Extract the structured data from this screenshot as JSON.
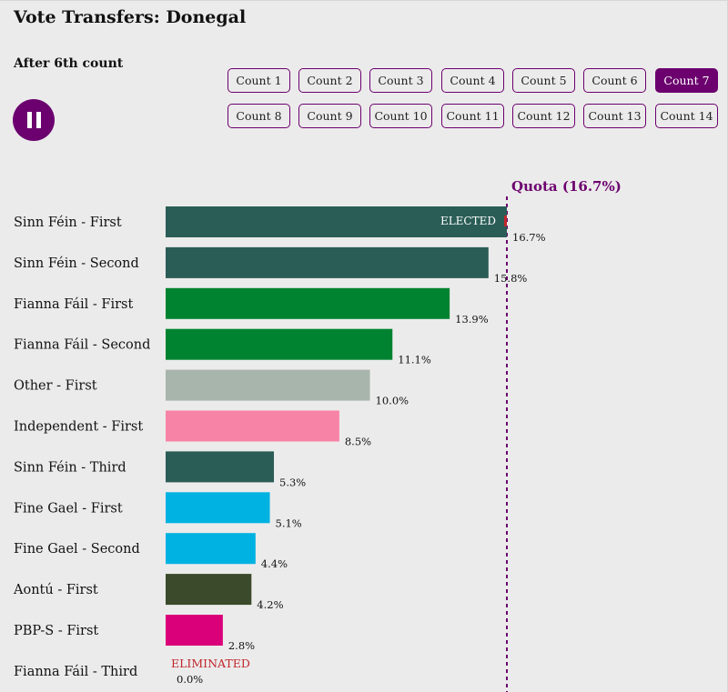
{
  "header": {
    "title": "Vote Transfers: Donegal",
    "subtitle": "After 6th count"
  },
  "controls": {
    "play_state": "paused",
    "counts": [
      {
        "label": "Count 1",
        "active": false
      },
      {
        "label": "Count 2",
        "active": false
      },
      {
        "label": "Count 3",
        "active": false
      },
      {
        "label": "Count 4",
        "active": false
      },
      {
        "label": "Count 5",
        "active": false
      },
      {
        "label": "Count 6",
        "active": false
      },
      {
        "label": "Count 7",
        "active": true
      },
      {
        "label": "Count 8",
        "active": false
      },
      {
        "label": "Count 9",
        "active": false
      },
      {
        "label": "Count 10",
        "active": false
      },
      {
        "label": "Count 11",
        "active": false
      },
      {
        "label": "Count 12",
        "active": false
      },
      {
        "label": "Count 13",
        "active": false
      },
      {
        "label": "Count 14",
        "active": false
      }
    ]
  },
  "colors": {
    "accent": "#6b006e",
    "eliminated": "#c0262c"
  },
  "chart_data": {
    "type": "bar",
    "orientation": "horizontal",
    "quota": 16.7,
    "quota_label": "Quota (16.7%)",
    "x_range": [
      0,
      16.7
    ],
    "categories": [
      "Sinn Féin - First",
      "Sinn Féin - Second",
      "Fianna Fáil - First",
      "Fianna Fáil - Second",
      "Other - First",
      "Independent - First",
      "Sinn Féin - Third",
      "Fine Gael - First",
      "Fine Gael - Second",
      "Aontú - First",
      "PBP-S - First",
      "Fianna Fáil - Third"
    ],
    "values": [
      16.7,
      15.8,
      13.9,
      11.1,
      10.0,
      8.5,
      5.3,
      5.1,
      4.4,
      4.2,
      2.8,
      0.0
    ],
    "value_labels": [
      "16.7%",
      "15.8%",
      "13.9%",
      "11.1%",
      "10.0%",
      "8.5%",
      "5.3%",
      "5.1%",
      "4.4%",
      "4.2%",
      "2.8%",
      "0.0%"
    ],
    "colors": [
      "#2a5d56",
      "#2a5d56",
      "#008330",
      "#008330",
      "#a8b5ad",
      "#f783a7",
      "#2a5d56",
      "#00b2e2",
      "#00b2e2",
      "#3a4a2a",
      "#d9007a",
      "#2a5d56"
    ],
    "status": [
      "ELECTED",
      "",
      "",
      "",
      "",
      "",
      "",
      "",
      "",
      "",
      "",
      "ELIMINATED"
    ]
  }
}
